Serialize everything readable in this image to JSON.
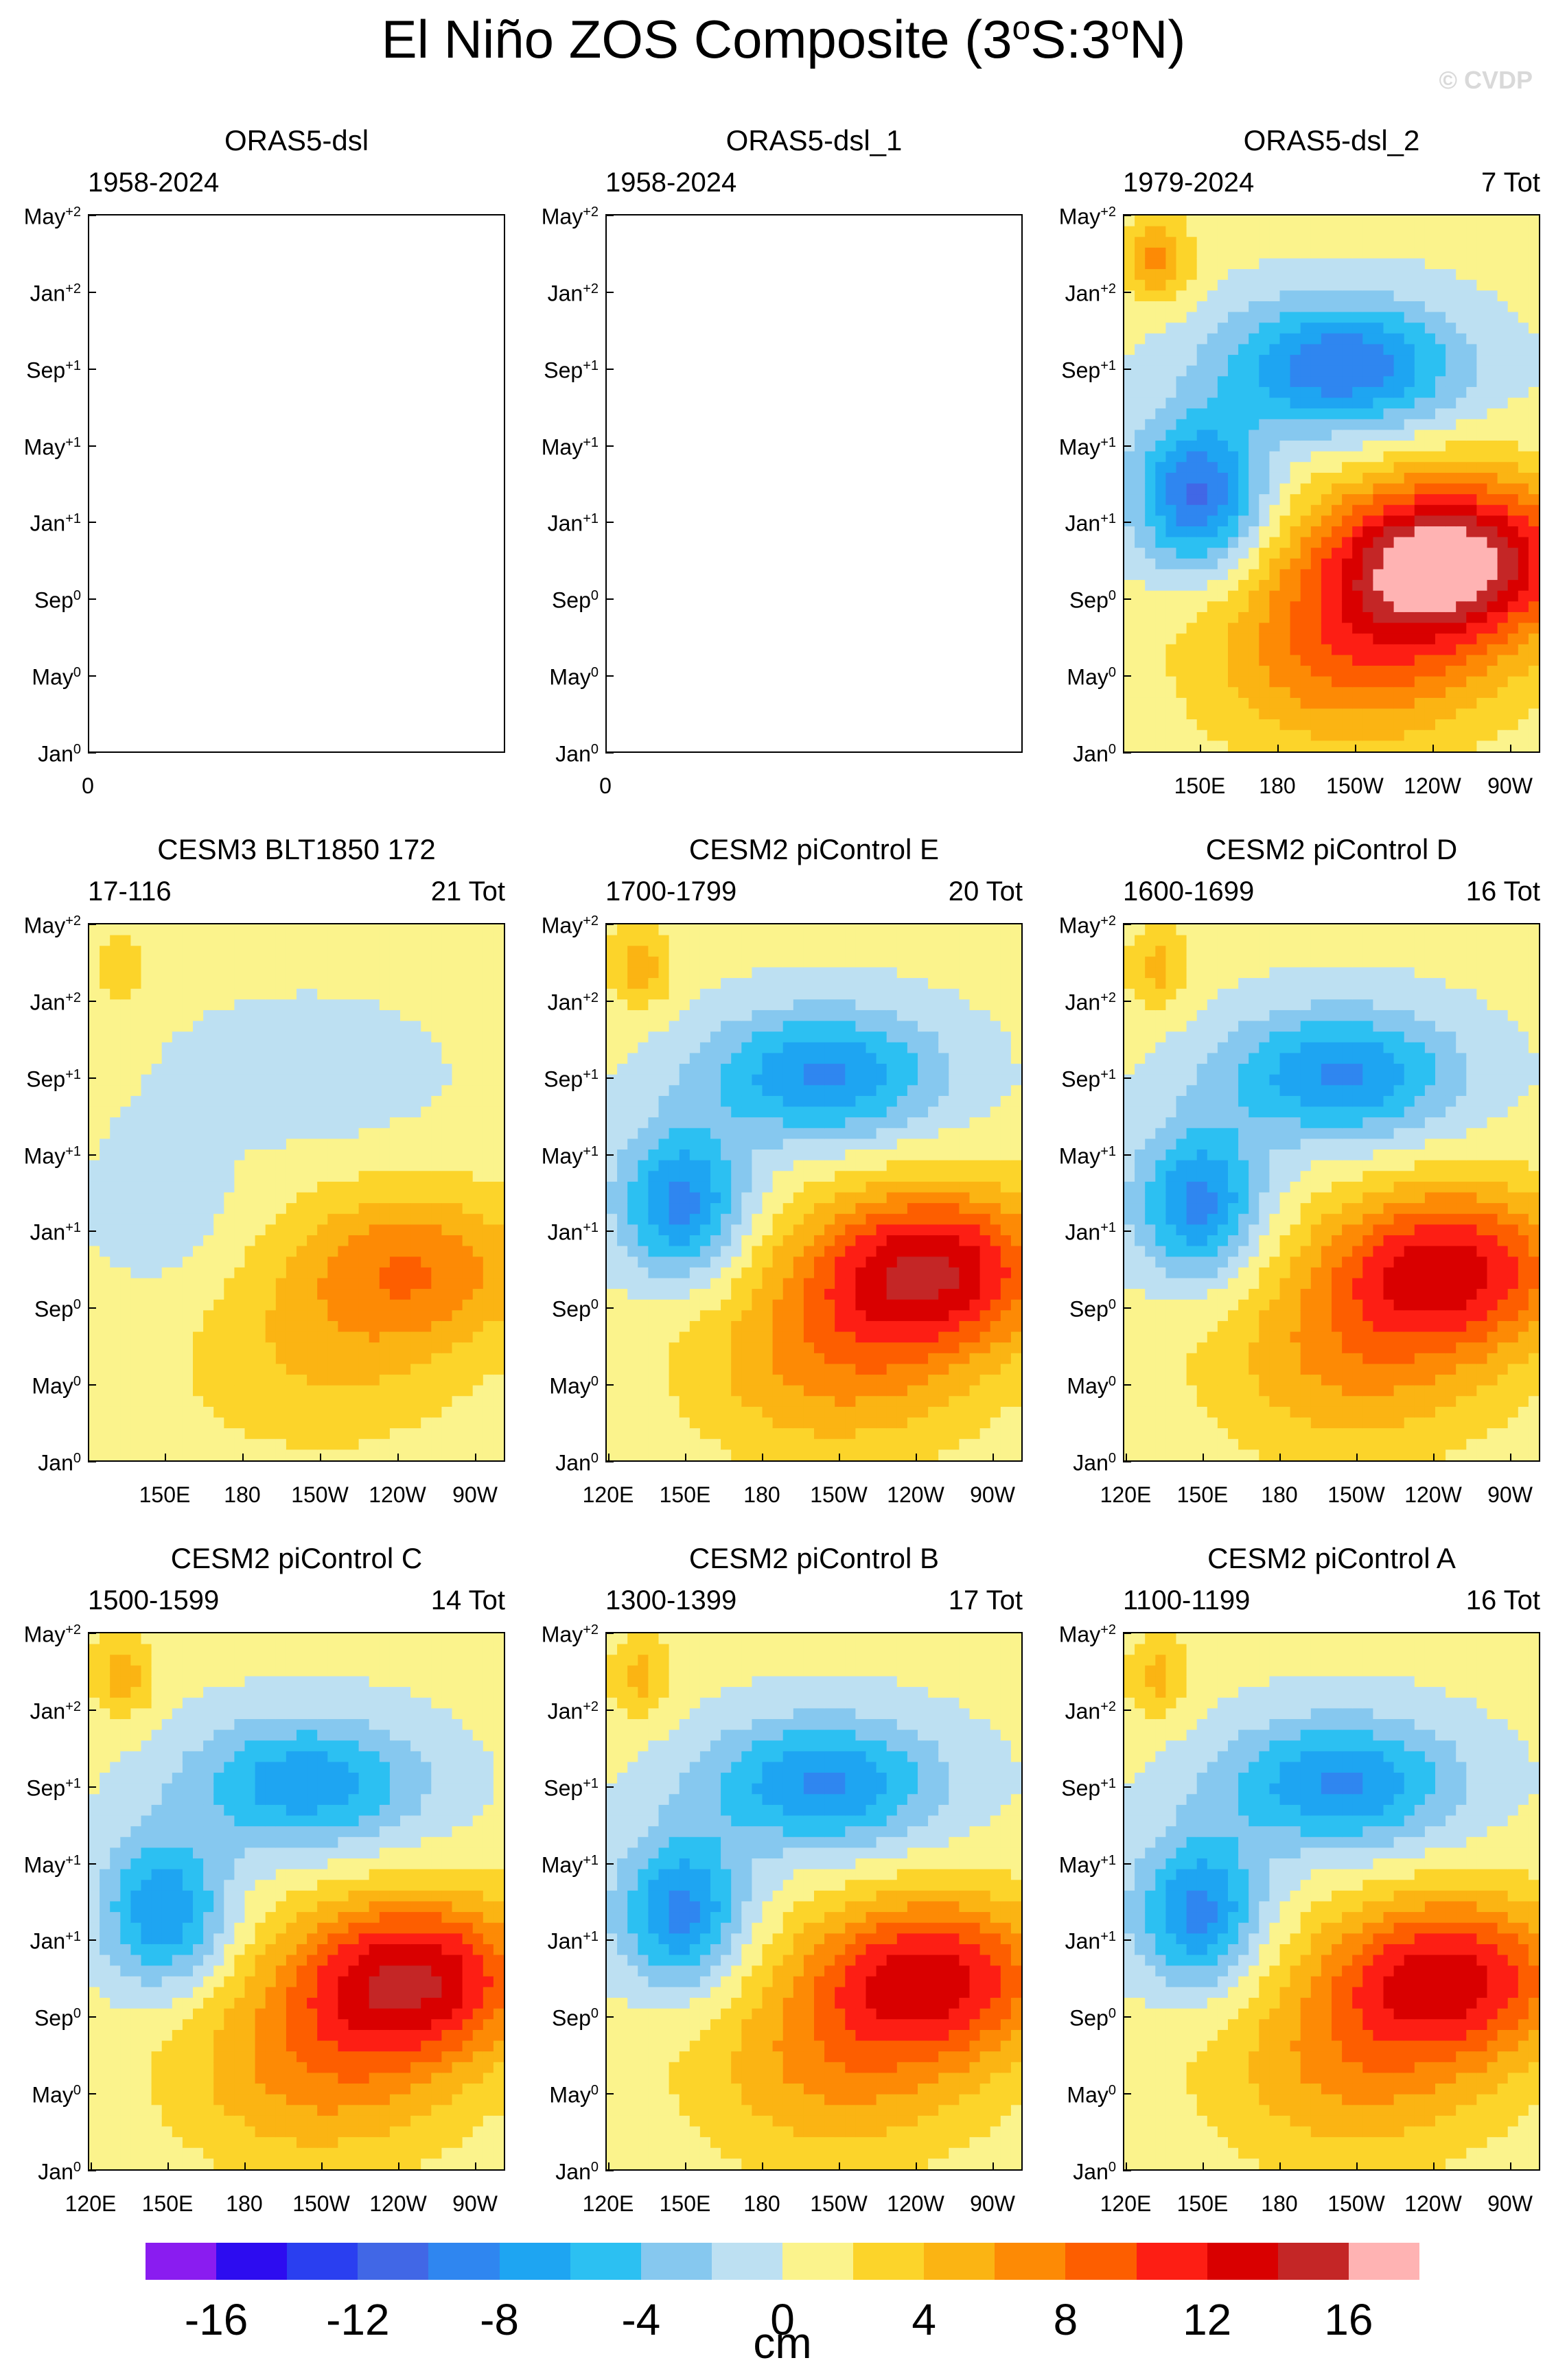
{
  "title": "El Niño ZOS Composite (3",
  "title_parts": [
    "El Niño ZOS Composite (3",
    "o",
    "S:3",
    "o",
    "N)"
  ],
  "watermark": "© CVDP",
  "chart_data": [
    {
      "type": "heatmap",
      "title": "ORAS5-dsl",
      "left": "1958-2024",
      "right": "",
      "empty": true,
      "x_ticks": [
        "0"
      ],
      "y_ticks": [
        "Jan0",
        "May0",
        "Sep0",
        "Jan+1",
        "May+1",
        "Sep+1",
        "Jan+2",
        "May+2"
      ]
    },
    {
      "type": "heatmap",
      "title": "ORAS5-dsl_1",
      "left": "1958-2024",
      "right": "",
      "empty": true,
      "x_ticks": [
        "0"
      ],
      "y_ticks": [
        "Jan0",
        "May0",
        "Sep0",
        "Jan+1",
        "May+1",
        "Sep+1",
        "Jan+2",
        "May+2"
      ]
    },
    {
      "type": "heatmap",
      "title": "ORAS5-dsl_2",
      "left": "1979-2024",
      "right": "7 Tot",
      "empty": false,
      "x_ticks": [
        "150E",
        "180",
        "150W",
        "120W",
        "90W"
      ],
      "warm_peak": 17,
      "cool_min": -13,
      "y_ticks": [
        "Jan0",
        "May0",
        "Sep0",
        "Jan+1",
        "May+1",
        "Sep+1",
        "Jan+2",
        "May+2"
      ]
    },
    {
      "type": "heatmap",
      "title": "CESM3 BLT1850 172",
      "left": "17-116",
      "right": "21 Tot",
      "empty": false,
      "x_ticks": [
        "150E",
        "180",
        "150W",
        "120W",
        "90W"
      ],
      "warm_peak": 7,
      "cool_min": -3,
      "y_ticks": [
        "Jan0",
        "May0",
        "Sep0",
        "Jan+1",
        "May+1",
        "Sep+1",
        "Jan+2",
        "May+2"
      ]
    },
    {
      "type": "heatmap",
      "title": "CESM2 piControl E",
      "left": "1700-1799",
      "right": "20 Tot",
      "empty": false,
      "x_ticks": [
        "120E",
        "150E",
        "180",
        "150W",
        "120W",
        "90W"
      ],
      "warm_peak": 13,
      "cool_min": -11,
      "y_ticks": [
        "Jan0",
        "May0",
        "Sep0",
        "Jan+1",
        "May+1",
        "Sep+1",
        "Jan+2",
        "May+2"
      ]
    },
    {
      "type": "heatmap",
      "title": "CESM2 piControl D",
      "left": "1600-1699",
      "right": "16 Tot",
      "empty": false,
      "x_ticks": [
        "120E",
        "150E",
        "180",
        "150W",
        "120W",
        "90W"
      ],
      "warm_peak": 12,
      "cool_min": -11,
      "y_ticks": [
        "Jan0",
        "May0",
        "Sep0",
        "Jan+1",
        "May+1",
        "Sep+1",
        "Jan+2",
        "May+2"
      ]
    },
    {
      "type": "heatmap",
      "title": "CESM2 piControl C",
      "left": "1500-1599",
      "right": "14 Tot",
      "empty": false,
      "x_ticks": [
        "120E",
        "150E",
        "180",
        "150W",
        "120W",
        "90W"
      ],
      "warm_peak": 13,
      "cool_min": -10,
      "y_ticks": [
        "Jan0",
        "May0",
        "Sep0",
        "Jan+1",
        "May+1",
        "Sep+1",
        "Jan+2",
        "May+2"
      ]
    },
    {
      "type": "heatmap",
      "title": "CESM2 piControl B",
      "left": "1300-1399",
      "right": "17 Tot",
      "empty": false,
      "x_ticks": [
        "120E",
        "150E",
        "180",
        "150W",
        "120W",
        "90W"
      ],
      "warm_peak": 12,
      "cool_min": -11,
      "y_ticks": [
        "Jan0",
        "May0",
        "Sep0",
        "Jan+1",
        "May+1",
        "Sep+1",
        "Jan+2",
        "May+2"
      ]
    },
    {
      "type": "heatmap",
      "title": "CESM2 piControl A",
      "left": "1100-1199",
      "right": "16 Tot",
      "empty": false,
      "x_ticks": [
        "120E",
        "150E",
        "180",
        "150W",
        "120W",
        "90W"
      ],
      "warm_peak": 12,
      "cool_min": -11,
      "y_ticks": [
        "Jan0",
        "May0",
        "Sep0",
        "Jan+1",
        "May+1",
        "Sep+1",
        "Jan+2",
        "May+2"
      ]
    }
  ],
  "colorbar": {
    "units": "cm",
    "labels": [
      "-16",
      "-12",
      "-8",
      "-4",
      "0",
      "4",
      "8",
      "12",
      "16"
    ],
    "levels": [
      -18,
      -16,
      -14,
      -12,
      -10,
      -8,
      -6,
      -4,
      -2,
      0,
      2,
      4,
      6,
      8,
      10,
      12,
      14,
      16,
      18
    ],
    "colors": [
      "#8a1cf0",
      "#2d0cf0",
      "#2a3ff0",
      "#4167e6",
      "#2f86f0",
      "#1ea5f2",
      "#2cc0f2",
      "#86c8ef",
      "#bde0f2",
      "#fbf38c",
      "#fcd42a",
      "#fbb413",
      "#fd8a05",
      "#fd5e00",
      "#fd1e14",
      "#d90000",
      "#c42626",
      "#ffb3b3"
    ]
  }
}
